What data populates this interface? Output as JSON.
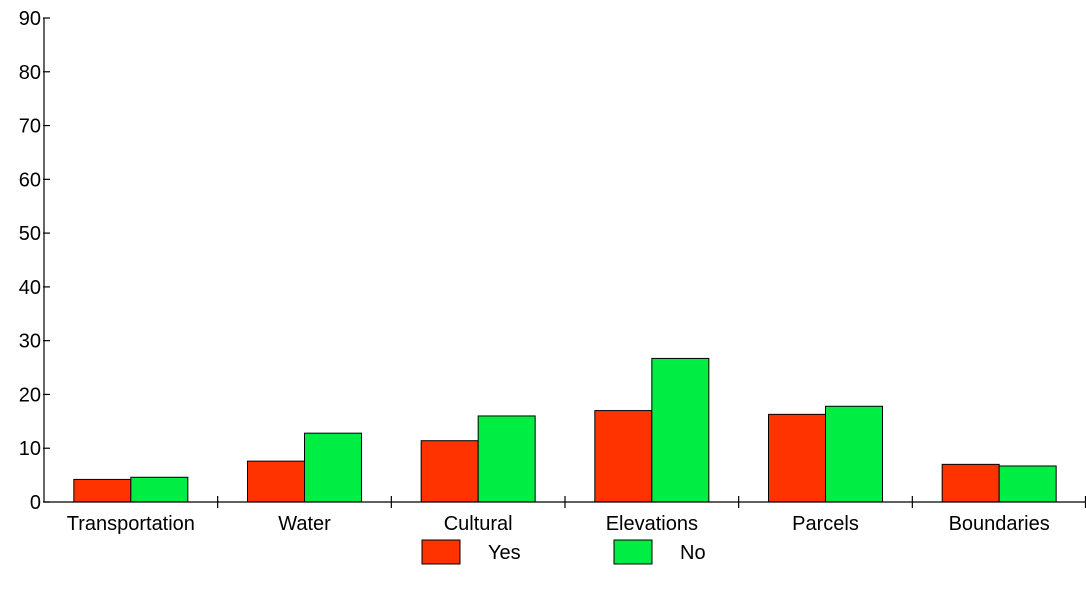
{
  "chart_data": {
    "type": "bar",
    "categories": [
      "Transportation",
      "Water",
      "Cultural",
      "Elevations",
      "Parcels",
      "Boundaries"
    ],
    "series": [
      {
        "name": "Yes",
        "color": "#ff3300",
        "values": [
          4.2,
          7.6,
          11.4,
          17.0,
          16.3,
          7.0
        ]
      },
      {
        "name": "No",
        "color": "#00ee44",
        "values": [
          4.6,
          12.8,
          16.0,
          26.7,
          17.8,
          6.7
        ]
      }
    ],
    "ylim": [
      0,
      90
    ],
    "yticks": [
      0,
      10,
      20,
      30,
      40,
      50,
      60,
      70,
      80,
      90
    ],
    "grid": false,
    "legend_position": "bottom-center"
  }
}
